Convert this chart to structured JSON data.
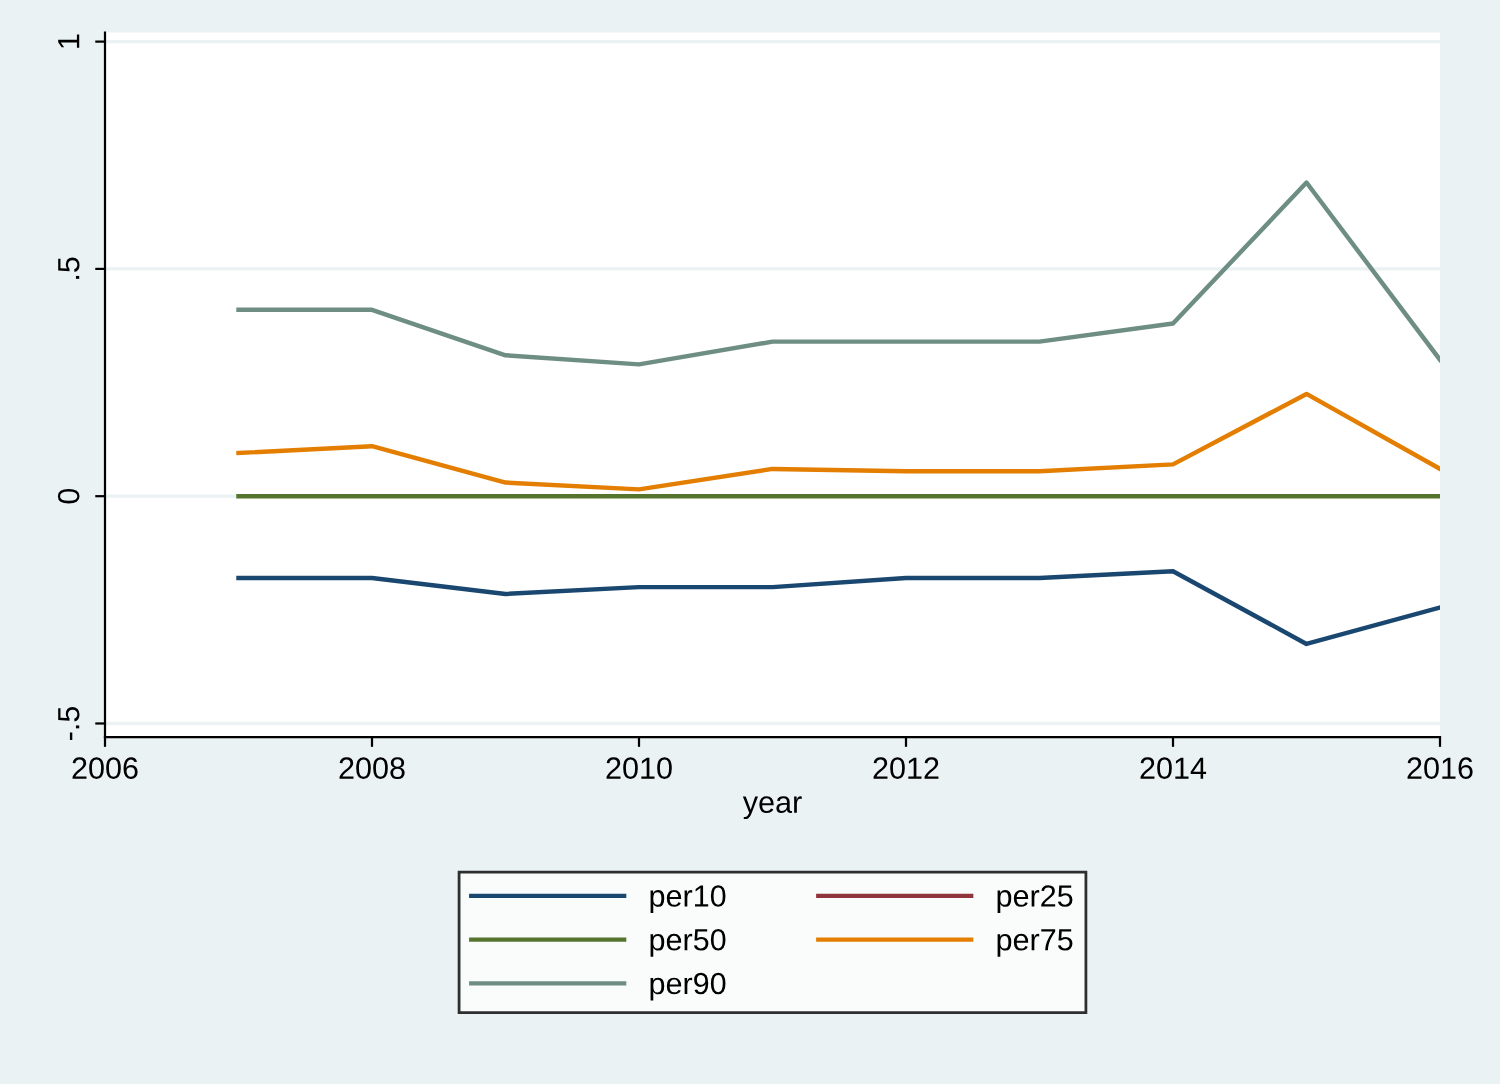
{
  "chart_data": {
    "type": "line",
    "xlabel": "year",
    "x": [
      2007,
      2008,
      2009,
      2010,
      2011,
      2012,
      2013,
      2014,
      2015,
      2016
    ],
    "series": [
      {
        "name": "per10",
        "color": "#1a476f",
        "values": [
          -0.18,
          -0.18,
          -0.215,
          -0.2,
          -0.2,
          -0.18,
          -0.18,
          -0.165,
          -0.325,
          -0.245
        ]
      },
      {
        "name": "per25",
        "color": "#90353b",
        "values": [
          null,
          null,
          null,
          null,
          null,
          null,
          null,
          null,
          null,
          null
        ]
      },
      {
        "name": "per50",
        "color": "#55752f",
        "values": [
          0,
          0,
          0,
          0,
          0,
          0,
          0,
          0,
          0,
          0
        ]
      },
      {
        "name": "per75",
        "color": "#e37e00",
        "values": [
          0.095,
          0.11,
          0.03,
          0.015,
          0.06,
          0.055,
          0.055,
          0.07,
          0.225,
          0.06
        ]
      },
      {
        "name": "per90",
        "color": "#6e8e84",
        "values": [
          0.41,
          0.41,
          0.31,
          0.29,
          0.34,
          0.34,
          0.34,
          0.38,
          0.69,
          0.3
        ]
      }
    ],
    "xlim": [
      2006,
      2016
    ],
    "ylim": [
      -0.53,
      1.02
    ],
    "xticks": [
      2006,
      2008,
      2010,
      2012,
      2014,
      2016
    ],
    "yticks": [
      {
        "value": -0.5,
        "label": "-.5"
      },
      0,
      {
        "value": 0.5,
        "label": ".5"
      },
      1
    ],
    "grid": "y",
    "legend": "bottom",
    "marker": "none",
    "line_style": "solid"
  }
}
